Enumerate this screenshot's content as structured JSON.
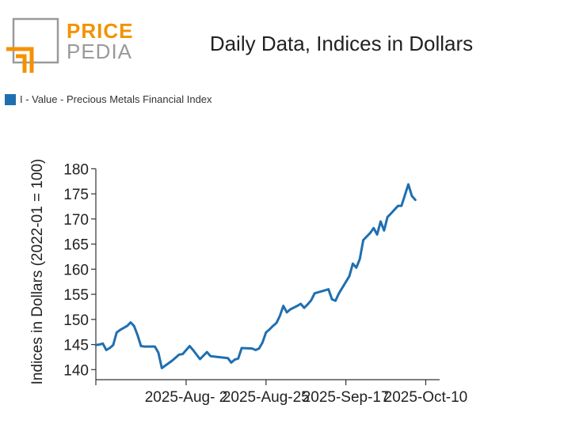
{
  "logo": {
    "word_top": "PRICE",
    "word_bottom": "PEDIA",
    "orange": "#f39200",
    "gray": "#9a9a9a"
  },
  "chart_data": {
    "type": "line",
    "title": "Daily Data, Indices in Dollars",
    "ylabel": "Indices in Dollars (2022-01 = 100)",
    "xlabel": "",
    "ylim": [
      138,
      181
    ],
    "yticks": [
      140,
      145,
      150,
      155,
      160,
      165,
      170,
      175,
      180
    ],
    "xlim": [
      "2025-07-07",
      "2025-10-14"
    ],
    "xticks": [
      {
        "date": "2025-07-07",
        "label": ""
      },
      {
        "date": "2025-08-02",
        "label": "2025-Aug- 2"
      },
      {
        "date": "2025-08-25",
        "label": "2025-Aug-25"
      },
      {
        "date": "2025-09-17",
        "label": "2025-Sep-17"
      },
      {
        "date": "2025-10-10",
        "label": "2025-Oct-10"
      }
    ],
    "legend_position": "top-left",
    "series": [
      {
        "name": "I - Value - Precious Metals Financial Index",
        "color": "#1f6fb0",
        "points": [
          [
            "2025-07-07",
            144.9
          ],
          [
            "2025-07-08",
            145.0
          ],
          [
            "2025-07-09",
            145.2
          ],
          [
            "2025-07-10",
            143.9
          ],
          [
            "2025-07-11",
            144.3
          ],
          [
            "2025-07-12",
            144.9
          ],
          [
            "2025-07-13",
            147.4
          ],
          [
            "2025-07-14",
            147.9
          ],
          [
            "2025-07-15",
            148.3
          ],
          [
            "2025-07-16",
            148.7
          ],
          [
            "2025-07-17",
            149.4
          ],
          [
            "2025-07-18",
            148.7
          ],
          [
            "2025-07-19",
            146.9
          ],
          [
            "2025-07-20",
            144.7
          ],
          [
            "2025-07-21",
            144.6
          ],
          [
            "2025-07-22",
            144.6
          ],
          [
            "2025-07-23",
            144.6
          ],
          [
            "2025-07-24",
            144.6
          ],
          [
            "2025-07-25",
            143.4
          ],
          [
            "2025-07-26",
            140.3
          ],
          [
            "2025-07-29",
            141.8
          ],
          [
            "2025-07-31",
            143.0
          ],
          [
            "2025-08-01",
            143.1
          ],
          [
            "2025-08-03",
            144.7
          ],
          [
            "2025-08-04",
            143.9
          ],
          [
            "2025-08-06",
            142.1
          ],
          [
            "2025-08-08",
            143.5
          ],
          [
            "2025-08-09",
            142.7
          ],
          [
            "2025-08-14",
            142.3
          ],
          [
            "2025-08-15",
            141.4
          ],
          [
            "2025-08-16",
            142.0
          ],
          [
            "2025-08-17",
            142.2
          ],
          [
            "2025-08-18",
            144.3
          ],
          [
            "2025-08-21",
            144.2
          ],
          [
            "2025-08-22",
            143.9
          ],
          [
            "2025-08-23",
            144.2
          ],
          [
            "2025-08-24",
            145.4
          ],
          [
            "2025-08-25",
            147.4
          ],
          [
            "2025-08-26",
            148.0
          ],
          [
            "2025-08-27",
            148.7
          ],
          [
            "2025-08-28",
            149.3
          ],
          [
            "2025-08-29",
            150.7
          ],
          [
            "2025-08-30",
            152.7
          ],
          [
            "2025-08-31",
            151.4
          ],
          [
            "2025-09-01",
            152.0
          ],
          [
            "2025-09-03",
            152.7
          ],
          [
            "2025-09-04",
            153.1
          ],
          [
            "2025-09-05",
            152.3
          ],
          [
            "2025-09-06",
            153.0
          ],
          [
            "2025-09-07",
            153.8
          ],
          [
            "2025-09-08",
            155.2
          ],
          [
            "2025-09-10",
            155.6
          ],
          [
            "2025-09-12",
            156.0
          ],
          [
            "2025-09-13",
            154.0
          ],
          [
            "2025-09-14",
            153.7
          ],
          [
            "2025-09-15",
            155.2
          ],
          [
            "2025-09-18",
            158.6
          ],
          [
            "2025-09-19",
            161.1
          ],
          [
            "2025-09-20",
            160.3
          ],
          [
            "2025-09-21",
            162.0
          ],
          [
            "2025-09-22",
            165.8
          ],
          [
            "2025-09-24",
            167.2
          ],
          [
            "2025-09-25",
            168.2
          ],
          [
            "2025-09-26",
            166.9
          ],
          [
            "2025-09-27",
            169.5
          ],
          [
            "2025-09-28",
            167.7
          ],
          [
            "2025-09-29",
            170.4
          ],
          [
            "2025-09-30",
            171.1
          ],
          [
            "2025-10-02",
            172.6
          ],
          [
            "2025-10-03",
            172.6
          ],
          [
            "2025-10-05",
            176.9
          ],
          [
            "2025-10-06",
            174.6
          ],
          [
            "2025-10-07",
            173.8
          ]
        ]
      }
    ]
  }
}
